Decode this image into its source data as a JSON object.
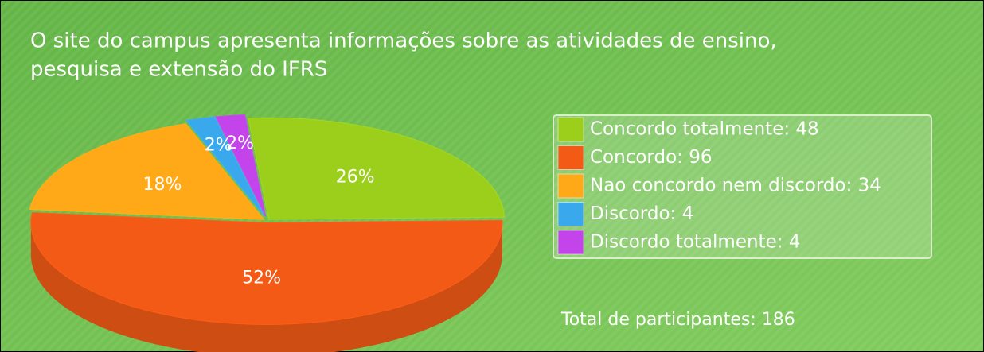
{
  "chart_data": {
    "type": "pie",
    "title": "O site do campus apresenta informações sobre as atividades de ensino,",
    "subtitle": "pesquisa e extensão do IFRS",
    "categories": [
      "Concordo totalmente: 48",
      "Concordo: 96",
      "Nao concordo nem discordo: 34",
      "Discordo: 4",
      "Discordo totalmente: 4"
    ],
    "values": [
      26,
      52,
      18,
      2,
      2
    ],
    "value_labels": [
      "26%",
      "52%",
      "18%",
      "2%",
      "2%"
    ],
    "colors": [
      "#9ccf1c",
      "#f25a16",
      "#ffa818",
      "#3aa8ec",
      "#c244ea"
    ],
    "annotation": "Total de participantes: 186"
  }
}
